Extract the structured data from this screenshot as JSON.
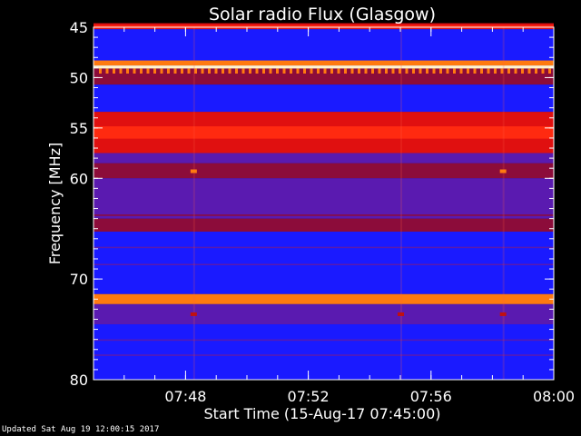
{
  "chart_data": {
    "type": "heatmap",
    "title": "Solar radio Flux (Glasgow)",
    "xlabel": "Start Time (15-Aug-17 07:45:00)",
    "ylabel": "Frequency [MHz]",
    "x_range": [
      "07:45",
      "08:00"
    ],
    "y_range": [
      45,
      80
    ],
    "y_ticks": [
      45,
      50,
      55,
      60,
      70,
      80
    ],
    "x_ticks": [
      "07:48",
      "07:52",
      "07:56",
      "08:00"
    ],
    "bands": [
      {
        "from": 44.6,
        "to": 45.2,
        "intensity": "red"
      },
      {
        "from": 45.2,
        "to": 48.3,
        "intensity": "blue"
      },
      {
        "from": 48.3,
        "to": 48.8,
        "intensity": "orange"
      },
      {
        "from": 48.8,
        "to": 49.1,
        "intensity": "white"
      },
      {
        "from": 49.1,
        "to": 49.6,
        "intensity": "orange-spikes"
      },
      {
        "from": 49.6,
        "to": 50.7,
        "intensity": "dark-red"
      },
      {
        "from": 50.7,
        "to": 53.4,
        "intensity": "blue"
      },
      {
        "from": 53.4,
        "to": 57.5,
        "intensity": "red"
      },
      {
        "from": 57.5,
        "to": 58.5,
        "intensity": "purple"
      },
      {
        "from": 58.5,
        "to": 60.0,
        "intensity": "dark-red"
      },
      {
        "from": 60.0,
        "to": 64.0,
        "intensity": "purple"
      },
      {
        "from": 64.0,
        "to": 65.3,
        "intensity": "dark-red"
      },
      {
        "from": 65.3,
        "to": 71.5,
        "intensity": "blue"
      },
      {
        "from": 71.5,
        "to": 72.5,
        "intensity": "orange"
      },
      {
        "from": 72.5,
        "to": 74.5,
        "intensity": "purple"
      },
      {
        "from": 74.5,
        "to": 80.0,
        "intensity": "blue"
      }
    ],
    "bursts": [
      {
        "time": "07:48:15",
        "freq": 59.3
      },
      {
        "time": "07:58:20",
        "freq": 59.3
      },
      {
        "time": "07:48:15",
        "freq": 73.5
      },
      {
        "time": "07:58:20",
        "freq": 73.5
      },
      {
        "time": "07:55:00",
        "freq": 73.5
      }
    ],
    "colors": {
      "blue": "#1a1aff",
      "purple": "#5a1ab0",
      "dark-red": "#8c0c3a",
      "red": "#e01010",
      "orange": "#ff7a10",
      "white": "#fff4d0",
      "navy": "#10109a"
    }
  },
  "footer": "Updated Sat Aug 19 12:00:15 2017"
}
